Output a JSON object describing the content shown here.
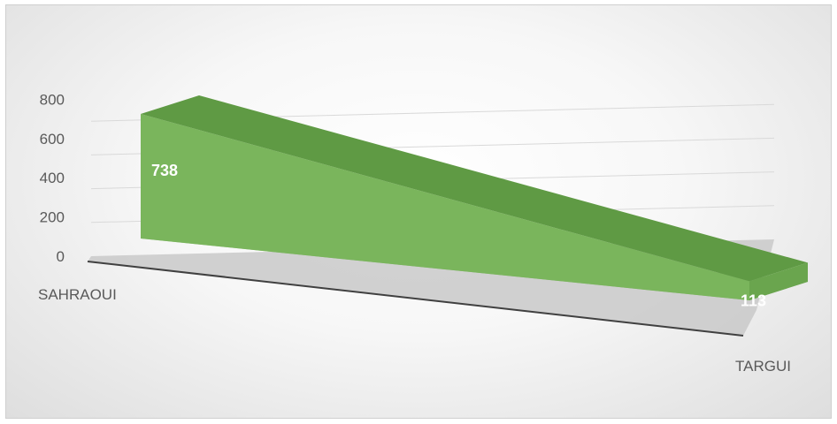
{
  "chart_data": {
    "type": "area",
    "categories": [
      "SAHRAOUI",
      "TARGUI"
    ],
    "values": [
      738,
      113
    ],
    "data_labels": [
      "738",
      "113"
    ],
    "yticks": [
      "0",
      "200",
      "400",
      "600",
      "800"
    ],
    "ylim": [
      0,
      800
    ],
    "grid": true,
    "legend": "none",
    "colors": {
      "front_face": "#7ab55c",
      "top_face": "#5f9a44",
      "end_face": "#6aa54e",
      "floor": "#c9c9c9",
      "axis": "#404040",
      "grid": "#d9d9d9"
    }
  }
}
